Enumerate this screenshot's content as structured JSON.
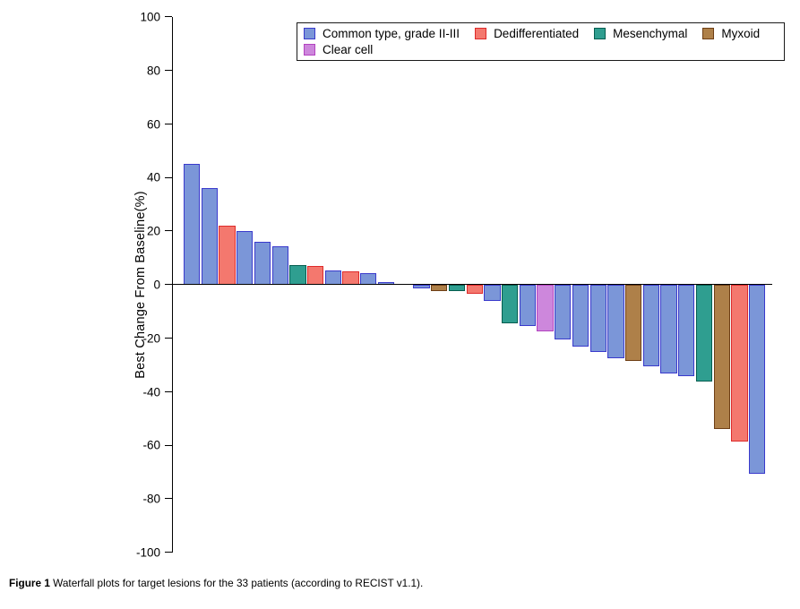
{
  "figure_caption": {
    "label": "Figure 1",
    "text": "Waterfall plots for target lesions for the 33 patients (according to RECIST v1.1)."
  },
  "chart_data": {
    "type": "bar",
    "title": "",
    "xlabel": "",
    "ylabel": "Best Change From Baseline(%)",
    "ylim": [
      -100,
      100
    ],
    "ytick_step": 20,
    "grid": false,
    "legend_position": "top-center",
    "legend": [
      {
        "label": "Common type, grade II-III",
        "fill": "#7b96d8",
        "stroke": "#3a3acc"
      },
      {
        "label": "Dedifferentiated",
        "fill": "#f4786e",
        "stroke": "#de2a2a"
      },
      {
        "label": "Mesenchymal",
        "fill": "#2f9e90",
        "stroke": "#055e50"
      },
      {
        "label": "Myxoid",
        "fill": "#ae8049",
        "stroke": "#6e3f16"
      },
      {
        "label": "Clear cell",
        "fill": "#cd87dc",
        "stroke": "#b343c0"
      }
    ],
    "bars": [
      {
        "value": 45,
        "type": "Common type, grade II-III"
      },
      {
        "value": 36,
        "type": "Common type, grade II-III"
      },
      {
        "value": 22,
        "type": "Dedifferentiated"
      },
      {
        "value": 20,
        "type": "Common type, grade II-III"
      },
      {
        "value": 16,
        "type": "Common type, grade II-III"
      },
      {
        "value": 14.5,
        "type": "Common type, grade II-III"
      },
      {
        "value": 7.5,
        "type": "Mesenchymal"
      },
      {
        "value": 7,
        "type": "Dedifferentiated"
      },
      {
        "value": 5.5,
        "type": "Common type, grade II-III"
      },
      {
        "value": 5,
        "type": "Dedifferentiated"
      },
      {
        "value": 4.5,
        "type": "Common type, grade II-III"
      },
      {
        "value": 1,
        "type": "Common type, grade II-III"
      },
      {
        "value": 0,
        "type": "Common type, grade II-III"
      },
      {
        "value": -1.5,
        "type": "Common type, grade II-III"
      },
      {
        "value": -2.5,
        "type": "Myxoid"
      },
      {
        "value": -2.5,
        "type": "Mesenchymal"
      },
      {
        "value": -3.5,
        "type": "Dedifferentiated"
      },
      {
        "value": -6,
        "type": "Common type, grade II-III"
      },
      {
        "value": -14.5,
        "type": "Mesenchymal"
      },
      {
        "value": -15.5,
        "type": "Common type, grade II-III"
      },
      {
        "value": -17.5,
        "type": "Clear cell"
      },
      {
        "value": -20.5,
        "type": "Common type, grade II-III"
      },
      {
        "value": -23,
        "type": "Common type, grade II-III"
      },
      {
        "value": -25,
        "type": "Common type, grade II-III"
      },
      {
        "value": -27.5,
        "type": "Common type, grade II-III"
      },
      {
        "value": -28.5,
        "type": "Myxoid"
      },
      {
        "value": -30.5,
        "type": "Common type, grade II-III"
      },
      {
        "value": -33,
        "type": "Common type, grade II-III"
      },
      {
        "value": -34,
        "type": "Common type, grade II-III"
      },
      {
        "value": -36,
        "type": "Mesenchymal"
      },
      {
        "value": -54,
        "type": "Myxoid"
      },
      {
        "value": -58.5,
        "type": "Dedifferentiated"
      },
      {
        "value": -70.5,
        "type": "Common type, grade II-III"
      }
    ]
  }
}
